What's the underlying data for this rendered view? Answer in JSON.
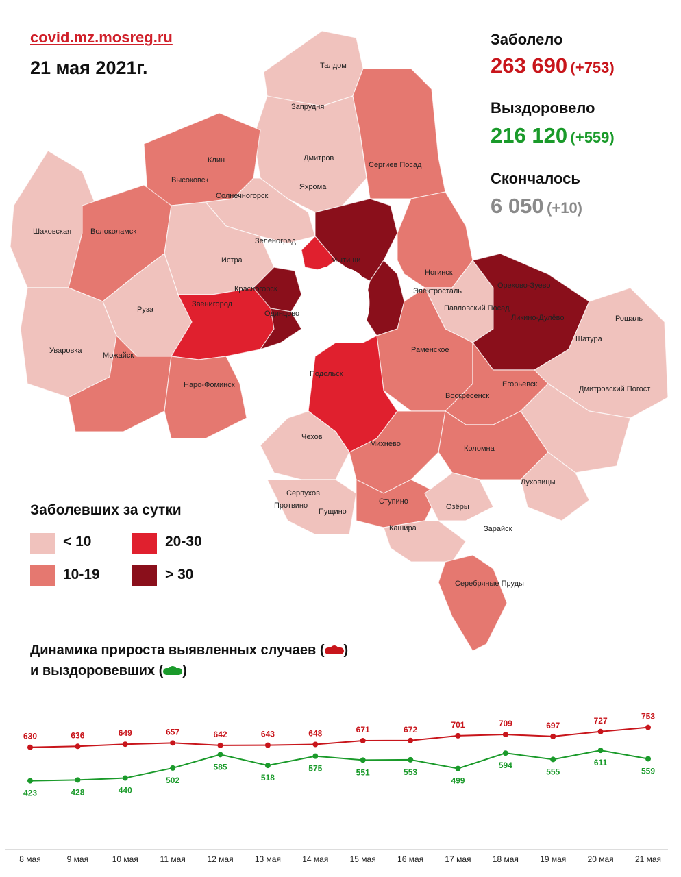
{
  "header": {
    "site": "covid.mz.mosreg.ru",
    "date": "21 мая 2021г."
  },
  "stats": {
    "cases": {
      "label": "Заболело",
      "value": "263 690",
      "delta": "(+753)"
    },
    "recovered": {
      "label": "Выздоровело",
      "value": "216 120",
      "delta": "(+559)"
    },
    "deaths": {
      "label": "Скончалось",
      "value": "6 050",
      "delta": "(+10)"
    }
  },
  "colors": {
    "lt10": "#f0c2bd",
    "c10_19": "#e57870",
    "c20_30": "#e0202e",
    "gt30": "#8a0f1b",
    "none": "#ffffff",
    "cases_line": "#c8151b",
    "recovered_line": "#1a9a2a"
  },
  "map": {
    "labels": {
      "taldom": "Талдом",
      "zaprudnya": "Запрудня",
      "dmitrov": "Дмитров",
      "sergiev": "Сергиев Посад",
      "klin": "Клин",
      "vysokovsk": "Высоковск",
      "yakhroma": "Яхрома",
      "solnechnogorsk": "Солнечногорск",
      "shakhovskaya": "Шаховская",
      "volokolamsk": "Волоколамск",
      "zelenograd": "Зеленоград",
      "istra": "Истра",
      "mytishchi": "Мытищи",
      "krasnogorsk": "Красногорск",
      "noginsk": "Ногинск",
      "elektrostal": "Электросталь",
      "orekhovo": "Орехово-Зуево",
      "likino": "Ликино-Дулёво",
      "pavlovsky": "Павловский Посад",
      "ruza": "Руза",
      "zvenigorod": "Звенигород",
      "odintsovo": "Одинцово",
      "roshal": "Рошаль",
      "shatura": "Шатура",
      "uvarovka": "Уваровка",
      "mozhaisk": "Можайск",
      "ramenskoe": "Раменское",
      "naro_fominsk": "Наро-Фоминск",
      "podolsk": "Подольск",
      "voskresensk": "Воскресенск",
      "egorievsk": "Егорьевск",
      "dmitrovsky_pogost": "Дмитровский Погост",
      "chekhov": "Чехов",
      "mikhnevo": "Михнево",
      "kolomna": "Коломна",
      "serpukhov": "Серпухов",
      "protvino": "Протвино",
      "pushchino": "Пущино",
      "stupino": "Ступино",
      "lukhovitsy": "Луховицы",
      "ozyory": "Озёры",
      "kashira": "Кашира",
      "zaraysk": "Зарайск",
      "serebryanye": "Серебряные Пруды"
    }
  },
  "legend": {
    "title": "Заболевших за сутки",
    "items": [
      {
        "label": "< 10"
      },
      {
        "label": "20-30"
      },
      {
        "label": "10-19"
      },
      {
        "label": "> 30"
      }
    ]
  },
  "dynamics": {
    "title_line1": "Динамика прироста выявленных случаев (",
    "title_line1_end": ")",
    "title_line2": "и выздоровевших (",
    "title_line2_end": ")"
  },
  "chart_data": {
    "type": "line",
    "categories": [
      "8 мая",
      "9 мая",
      "10 мая",
      "11 мая",
      "12 мая",
      "13 мая",
      "14 мая",
      "15 мая",
      "16 мая",
      "17 мая",
      "18 мая",
      "19 мая",
      "20 мая",
      "21 мая"
    ],
    "series": [
      {
        "key": "cases",
        "values": [
          630,
          636,
          649,
          657,
          642,
          643,
          648,
          671,
          672,
          701,
          709,
          697,
          727,
          753
        ]
      },
      {
        "key": "recovered",
        "values": [
          423,
          428,
          440,
          502,
          585,
          518,
          575,
          551,
          553,
          499,
          594,
          555,
          611,
          559
        ]
      }
    ]
  }
}
